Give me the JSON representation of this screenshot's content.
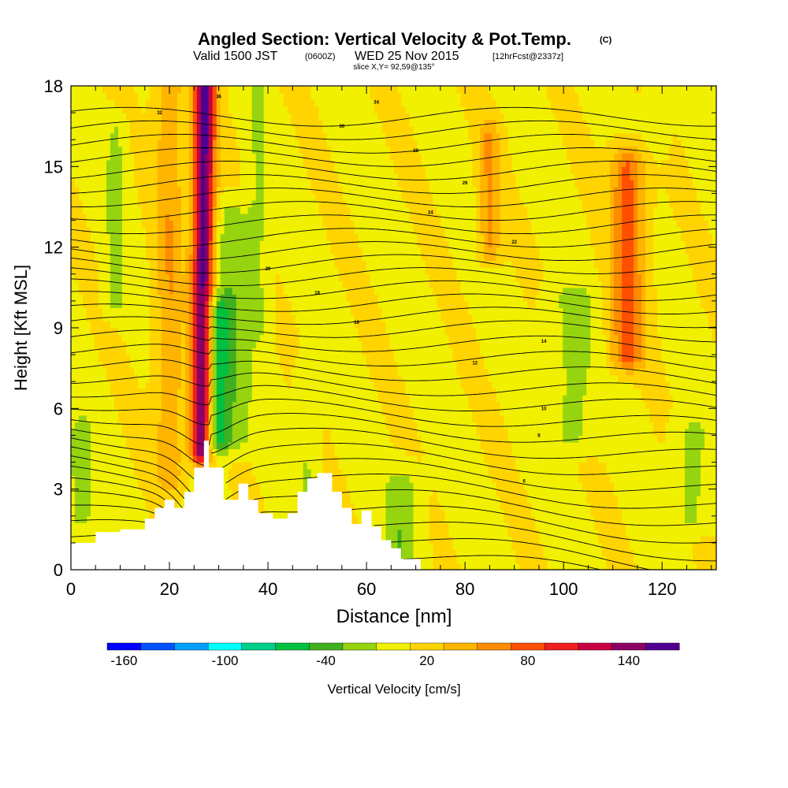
{
  "title": {
    "main": "Angled Section: Vertical Velocity & Pot.Temp.",
    "copyright": "(C)",
    "valid_prefix": "Valid 1500 JST",
    "valid_utc": "(0600Z)",
    "valid_date": "WED 25 Nov 2015",
    "forecast": "[12hrFcst@2337z]",
    "slice": "slice X,Y= 92,59@135°"
  },
  "chart_data": {
    "type": "heatmap",
    "title": "Angled Section: Vertical Velocity & Pot.Temp.",
    "xlabel": "Distance [nm]",
    "ylabel": "Height [Kft MSL]",
    "xlim": [
      0,
      131
    ],
    "ylim": [
      0,
      18
    ],
    "xticks": [
      0,
      20,
      40,
      60,
      80,
      100,
      120
    ],
    "yticks": [
      0,
      3,
      6,
      9,
      12,
      15,
      18
    ],
    "colorbar": {
      "label": "Vertical Velocity [cm/s]",
      "tick_labels": [
        "-160",
        "-100",
        "-40",
        "20",
        "80",
        "140"
      ],
      "tick_values": [
        -160,
        -100,
        -40,
        20,
        80,
        140
      ],
      "colors": [
        "#0000ff",
        "#0050ff",
        "#00a0ff",
        "#00ffff",
        "#00d08a",
        "#00c040",
        "#40b020",
        "#96d410",
        "#f0f000",
        "#ffd400",
        "#ffb400",
        "#ff8c00",
        "#ff5000",
        "#f01e1e",
        "#c80041",
        "#8c0064",
        "#500091"
      ],
      "range": [
        -170,
        170
      ]
    },
    "terrain_profile": {
      "x": [
        0,
        5,
        5,
        10,
        10,
        15,
        15,
        17,
        17,
        19,
        19,
        21,
        21,
        23,
        23,
        25,
        25,
        27,
        27,
        28,
        28,
        31,
        31,
        34,
        34,
        36,
        36,
        38,
        38,
        41,
        41,
        44,
        44,
        46,
        46,
        48,
        48,
        50,
        50,
        53,
        53,
        55,
        55,
        57,
        57,
        59,
        59,
        61,
        61,
        63,
        63,
        65,
        65,
        67,
        67,
        71,
        71
      ],
      "height_kft": [
        1,
        1,
        1.4,
        1.4,
        1.5,
        1.5,
        1.9,
        1.9,
        2.3,
        2.3,
        2.6,
        2.6,
        2.3,
        2.3,
        2.9,
        2.9,
        3.8,
        3.8,
        4.8,
        4.8,
        3.8,
        3.8,
        2.6,
        2.6,
        3.2,
        3.2,
        2.6,
        2.6,
        2.1,
        2.1,
        1.9,
        1.9,
        2.1,
        2.1,
        2.9,
        2.9,
        3.4,
        3.4,
        3.6,
        3.6,
        2.9,
        2.9,
        2.3,
        2.3,
        1.7,
        1.7,
        2.2,
        2.2,
        1.6,
        1.6,
        1.1,
        1.1,
        0.8,
        0.8,
        0.4,
        0.4,
        0
      ]
    },
    "vertical_velocity_features": [
      {
        "x": 26.5,
        "z": [
          4.5,
          18
        ],
        "w": 150,
        "width_nm": 3.2
      },
      {
        "x": 29.5,
        "z": [
          4.8,
          9.5
        ],
        "w": -60,
        "width_nm": 4
      },
      {
        "x": 33,
        "z": [
          5,
          13
        ],
        "w": -30,
        "width_nm": 6
      },
      {
        "x": 20,
        "z": [
          3.5,
          18
        ],
        "w": 40,
        "width_nm": 4
      },
      {
        "x": 9,
        "z": [
          10,
          16
        ],
        "w": -25,
        "width_nm": 3
      },
      {
        "x": 38,
        "z": [
          9,
          18
        ],
        "w": -20,
        "width_nm": 3
      },
      {
        "x": 48,
        "z": [
          3,
          7
        ],
        "w": -20,
        "width_nm": 3
      },
      {
        "x": 85,
        "z": [
          12,
          16
        ],
        "w": 45,
        "width_nm": 3
      },
      {
        "x": 113,
        "z": [
          8,
          15
        ],
        "w": 70,
        "width_nm": 5
      },
      {
        "x": 102,
        "z": [
          5,
          10
        ],
        "w": -25,
        "width_nm": 7
      },
      {
        "x": 119,
        "z": [
          16,
          18
        ],
        "w": -20,
        "width_nm": 3
      },
      {
        "x": 67,
        "z": [
          0.5,
          3
        ],
        "w": -35,
        "width_nm": 5
      },
      {
        "x": 126,
        "z": [
          2,
          5
        ],
        "w": -25,
        "width_nm": 5
      },
      {
        "x": 2,
        "z": [
          2,
          5
        ],
        "w": -30,
        "width_nm": 4
      }
    ],
    "theta_contours": {
      "interval_K": 2,
      "labeled_values": [
        6,
        8,
        10,
        12,
        14,
        16,
        18,
        20,
        22,
        24,
        26,
        28,
        30,
        32,
        34,
        36
      ]
    }
  }
}
